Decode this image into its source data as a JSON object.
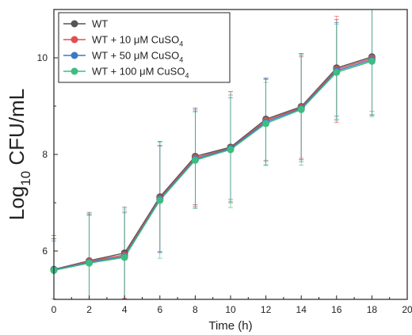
{
  "chart_data": {
    "type": "line",
    "xlabel": "Time (h)",
    "ylabel": {
      "main": "Log",
      "sub": "10",
      "rest": " CFU/mL"
    },
    "xlim": [
      0,
      20
    ],
    "ylim": [
      5.0,
      11.0
    ],
    "xticks": [
      0,
      2,
      4,
      6,
      8,
      10,
      12,
      14,
      16,
      18,
      20
    ],
    "yticks": [
      6,
      8,
      10
    ],
    "grid": false,
    "legend_position": "top-left",
    "x": [
      0,
      2,
      4,
      6,
      8,
      10,
      12,
      14,
      16,
      18
    ],
    "series": [
      {
        "name": "WT",
        "name_sub": "",
        "color": "#555555",
        "values": [
          5.62,
          5.8,
          5.96,
          7.12,
          7.96,
          8.15,
          8.73,
          8.99,
          9.79,
          10.02
        ],
        "errors": [
          0.7,
          1.0,
          0.95,
          1.15,
          1.0,
          1.15,
          0.85,
          1.1,
          1.0,
          1.2
        ]
      },
      {
        "name": "WT + 10 μM CuSO",
        "name_sub": "4",
        "color": "#e0504e",
        "values": [
          5.61,
          5.79,
          5.92,
          7.09,
          7.93,
          8.13,
          8.7,
          8.97,
          9.76,
          9.99
        ],
        "errors": [
          0.65,
          0.95,
          0.9,
          1.1,
          1.0,
          1.1,
          0.85,
          1.05,
          1.1,
          1.1
        ]
      },
      {
        "name": "WT + 50 μM CuSO",
        "name_sub": "4",
        "color": "#3c78c8",
        "values": [
          5.61,
          5.77,
          5.89,
          7.07,
          7.9,
          8.12,
          8.67,
          8.95,
          9.73,
          9.96
        ],
        "errors": [
          0.6,
          1.0,
          0.9,
          1.1,
          1.0,
          1.05,
          0.9,
          1.1,
          1.0,
          1.15
        ]
      },
      {
        "name": "WT + 100 μM CuSO",
        "name_sub": "4",
        "color": "#3dbd80",
        "values": [
          5.6,
          5.75,
          5.87,
          7.05,
          7.88,
          8.1,
          8.64,
          8.93,
          9.7,
          9.93
        ],
        "errors": [
          0.65,
          1.0,
          1.0,
          1.2,
          1.0,
          1.2,
          0.85,
          1.15,
          1.0,
          1.15
        ]
      }
    ]
  }
}
